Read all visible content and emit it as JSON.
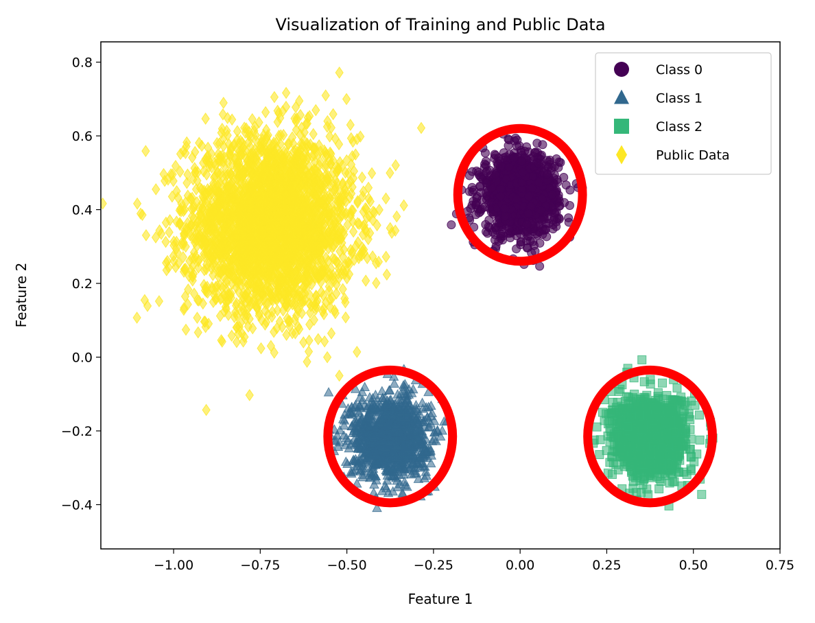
{
  "chart_data": {
    "type": "scatter",
    "title": "Visualization of Training and Public Data",
    "xlabel": "Feature 1",
    "ylabel": "Feature 2",
    "xlim": [
      -1.21,
      0.75
    ],
    "ylim": [
      -0.52,
      0.855
    ],
    "x_ticks": [
      -1.0,
      -0.75,
      -0.5,
      -0.25,
      0.0,
      0.25,
      0.5,
      0.75
    ],
    "x_tick_labels": [
      "−1.00",
      "−0.75",
      "−0.50",
      "−0.25",
      "0.00",
      "0.25",
      "0.50",
      "0.75"
    ],
    "y_ticks": [
      -0.4,
      -0.2,
      0.0,
      0.2,
      0.4,
      0.6,
      0.8
    ],
    "y_tick_labels": [
      "−0.4",
      "−0.2",
      "0.0",
      "0.2",
      "0.4",
      "0.6",
      "0.8"
    ],
    "grid": false,
    "legend_position": "top-right",
    "series": [
      {
        "name": "Class 0",
        "marker": "circle",
        "color": "#440154",
        "center": [
          0.0,
          0.44
        ],
        "std": 0.055,
        "n": 1200,
        "alpha": 0.6
      },
      {
        "name": "Class 1",
        "marker": "triangle",
        "color": "#31688e",
        "center": [
          -0.375,
          -0.215
        ],
        "std": 0.055,
        "n": 1200,
        "alpha": 0.55
      },
      {
        "name": "Class 2",
        "marker": "square",
        "color": "#35b779",
        "center": [
          0.375,
          -0.215
        ],
        "std": 0.055,
        "n": 1200,
        "alpha": 0.55
      },
      {
        "name": "Public Data",
        "marker": "diamond",
        "color": "#fde725",
        "center": [
          -0.72,
          0.36
        ],
        "std": 0.12,
        "n": 3000,
        "alpha": 0.6
      }
    ],
    "highlight_circles": [
      {
        "center": [
          0.0,
          0.44
        ],
        "radius": 0.18,
        "color": "#ff0000"
      },
      {
        "center": [
          -0.375,
          -0.215
        ],
        "radius": 0.18,
        "color": "#ff0000"
      },
      {
        "center": [
          0.375,
          -0.215
        ],
        "radius": 0.18,
        "color": "#ff0000"
      }
    ]
  }
}
